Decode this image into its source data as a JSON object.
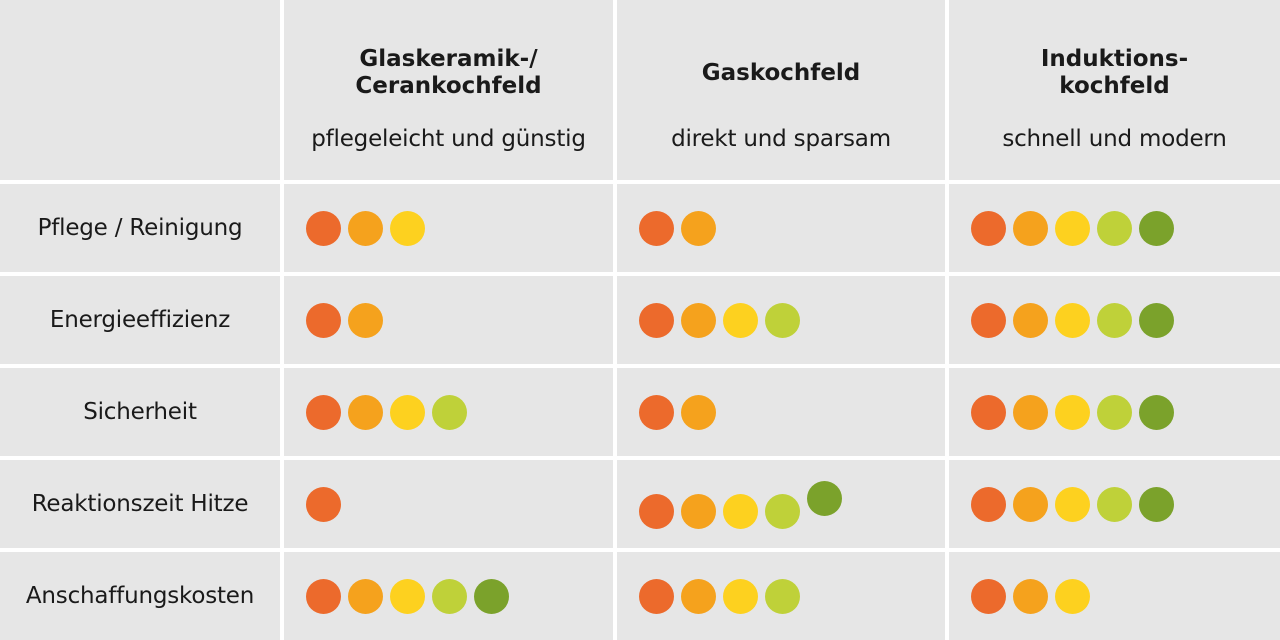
{
  "columns": [
    {
      "title": "Glaskeramik-/\nCerankochfeld",
      "subtitle": "pflegeleicht und günstig"
    },
    {
      "title": "Gaskochfeld",
      "subtitle": "direkt und sparsam"
    },
    {
      "title": "Induktions-\nkochfeld",
      "subtitle": "schnell und modern"
    }
  ],
  "rows": [
    {
      "label": "Pflege / Reinigung",
      "ratings": [
        3,
        2,
        5
      ]
    },
    {
      "label": "Energieeffizienz",
      "ratings": [
        2,
        4,
        5
      ]
    },
    {
      "label": "Sicherheit",
      "ratings": [
        4,
        2,
        5
      ]
    },
    {
      "label": "Reaktionszeit Hitze",
      "ratings": [
        1,
        5,
        5
      ]
    },
    {
      "label": "Anschaffungskosten",
      "ratings": [
        5,
        4,
        3
      ]
    }
  ],
  "dot_colors": [
    "#ec6a2c",
    "#f5a21d",
    "#fdd11f",
    "#bfd139",
    "#7ba22b"
  ]
}
